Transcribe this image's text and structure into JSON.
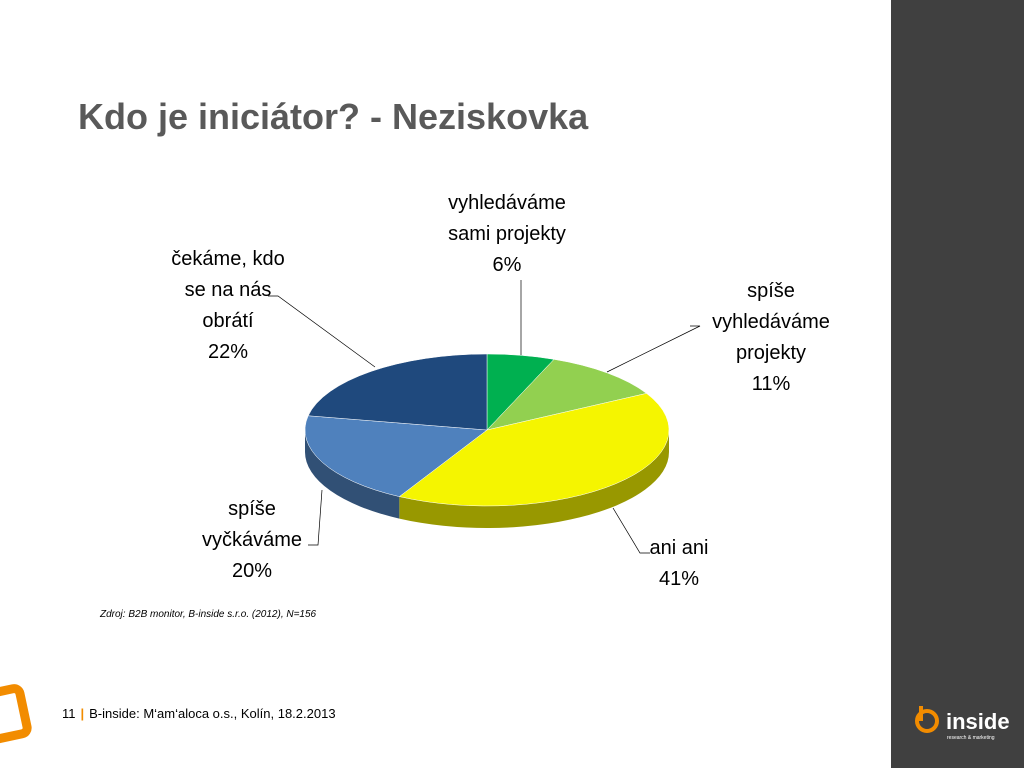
{
  "header": {
    "title": "Kdo je iniciátor? - Neziskovka"
  },
  "chart_data": {
    "type": "pie",
    "categories": [
      "vyhledáváme sami projekty",
      "spíše vyhledáváme projekty",
      "ani ani",
      "spíše vyčkáváme",
      "čekáme, kdo se na nás obrátí"
    ],
    "values": [
      6,
      11,
      41,
      20,
      22
    ],
    "value_labels": [
      "6%",
      "11%",
      "41%",
      "20%",
      "22%"
    ],
    "colors": [
      "#00b050",
      "#92d050",
      "#f5f500",
      "#4f81bd",
      "#1f497d"
    ]
  },
  "source": "Zdroj: B2B monitor, B-inside s.r.o. (2012), N=156",
  "footer": {
    "page": "11",
    "separator": "|",
    "text": "B-inside: M‘am‘aloca o.s., Kolín, 18.2.2013"
  },
  "logo": {
    "name": "inside",
    "tagline": "research & marketing"
  }
}
